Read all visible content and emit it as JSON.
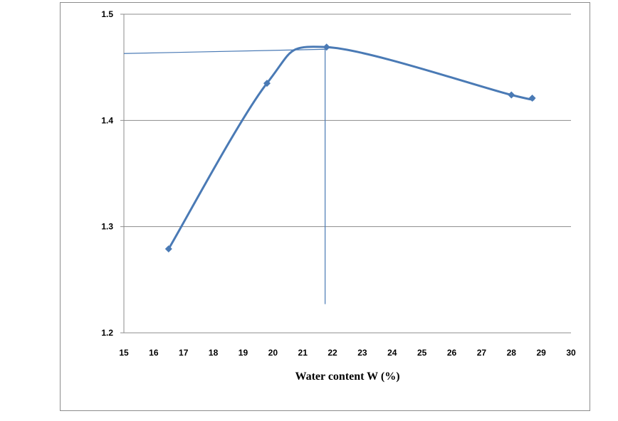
{
  "chart_data": {
    "type": "line",
    "xlabel": "Water content W (%)",
    "ylabel": "",
    "xlim": [
      15,
      30
    ],
    "ylim": [
      1.2,
      1.5
    ],
    "x_ticks": [
      "15",
      "16",
      "17",
      "18",
      "19",
      "20",
      "21",
      "22",
      "23",
      "24",
      "25",
      "26",
      "27",
      "28",
      "29",
      "30"
    ],
    "y_ticks": [
      "1.2",
      "1.3",
      "1.4",
      "1.5"
    ],
    "grid": "horizontal",
    "series": [
      {
        "x": [
          16.5,
          19.8,
          21.8,
          28.0,
          28.7
        ],
        "y": [
          1.279,
          1.435,
          1.469,
          1.424,
          1.421
        ],
        "marker": "diamond",
        "color": "#4a7ab5"
      }
    ],
    "annotations": [
      {
        "type": "horizontal-guide",
        "from_x": 15,
        "to_x": 21.8,
        "y_start": 1.463,
        "y_end": 1.467
      },
      {
        "type": "vertical-guide",
        "x": 21.75,
        "from_y": 1.467,
        "to_y": 1.227
      }
    ],
    "colors": {
      "series": "#4a7ab5",
      "guide": "#4a7ab5",
      "grid": "#8c8c8c",
      "frame": "#8c8c8c"
    }
  }
}
